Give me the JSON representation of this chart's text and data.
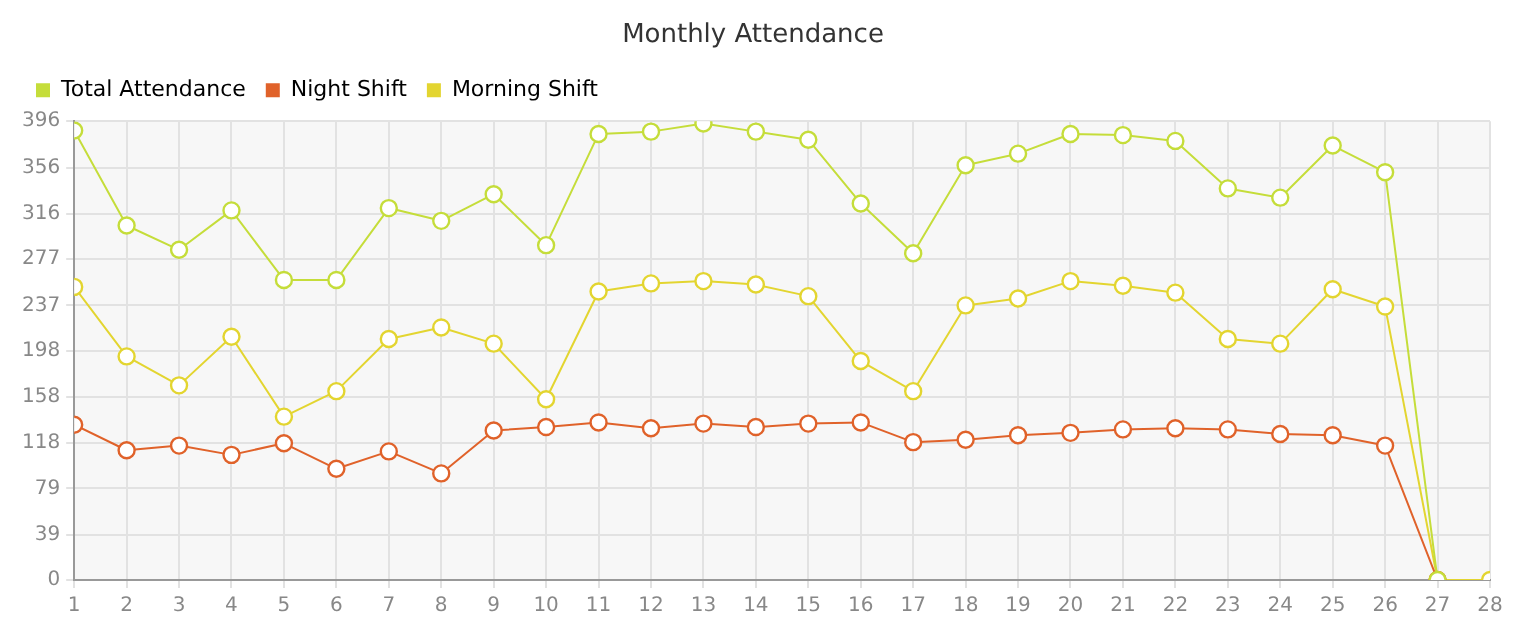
{
  "chart_data": {
    "type": "line",
    "title": "Monthly Attendance",
    "x": [
      1,
      2,
      3,
      4,
      5,
      6,
      7,
      8,
      9,
      10,
      11,
      12,
      13,
      14,
      15,
      16,
      17,
      18,
      19,
      20,
      21,
      22,
      23,
      24,
      25,
      26,
      27,
      28
    ],
    "series": [
      {
        "name": "Total Attendance",
        "color": "#c5dd3a",
        "values": [
          388,
          306,
          285,
          319,
          259,
          259,
          321,
          310,
          333,
          289,
          385,
          387,
          394,
          387,
          380,
          325,
          282,
          358,
          368,
          385,
          384,
          379,
          338,
          330,
          375,
          352,
          0,
          null
        ]
      },
      {
        "name": "Night Shift",
        "color": "#e0622a",
        "values": [
          134,
          112,
          116,
          108,
          118,
          96,
          111,
          92,
          129,
          132,
          136,
          131,
          135,
          132,
          135,
          136,
          119,
          121,
          125,
          127,
          130,
          131,
          130,
          126,
          125,
          116,
          0,
          null
        ]
      },
      {
        "name": "Morning Shift",
        "color": "#e3d530",
        "values": [
          253,
          193,
          168,
          210,
          141,
          163,
          208,
          218,
          204,
          156,
          249,
          256,
          258,
          255,
          245,
          189,
          163,
          237,
          243,
          258,
          254,
          248,
          208,
          204,
          251,
          236,
          0,
          0
        ]
      }
    ],
    "xlim": [
      1,
      28
    ],
    "xticks": [
      1,
      2,
      3,
      4,
      5,
      6,
      7,
      8,
      9,
      10,
      11,
      12,
      13,
      14,
      15,
      16,
      17,
      18,
      19,
      20,
      21,
      22,
      23,
      24,
      25,
      26,
      27,
      28
    ],
    "ylim": [
      0,
      396
    ],
    "yticks": [
      0,
      39,
      79,
      118,
      158,
      198,
      237,
      277,
      316,
      356,
      396
    ],
    "grid": true,
    "legend": "top left",
    "marker": "circle",
    "line_style": "solid"
  }
}
